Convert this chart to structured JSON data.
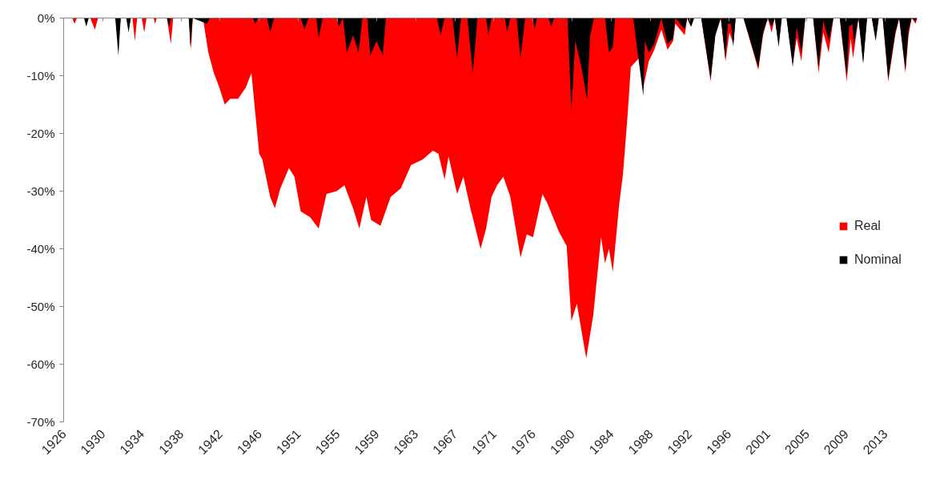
{
  "chart_data": {
    "type": "area",
    "xlim": [
      "1926-01",
      "2016-12"
    ],
    "xticks": [
      {
        "value": "1926-01",
        "label": "1926"
      },
      {
        "value": "1930-03",
        "label": "1930"
      },
      {
        "value": "1934-05",
        "label": "1934"
      },
      {
        "value": "1938-07",
        "label": "1938"
      },
      {
        "value": "1942-09",
        "label": "1942"
      },
      {
        "value": "1946-11",
        "label": "1946"
      },
      {
        "value": "1951-01",
        "label": "1951"
      },
      {
        "value": "1955-03",
        "label": "1955"
      },
      {
        "value": "1959-05",
        "label": "1959"
      },
      {
        "value": "1963-07",
        "label": "1963"
      },
      {
        "value": "1967-09",
        "label": "1967"
      },
      {
        "value": "1971-11",
        "label": "1971"
      },
      {
        "value": "1976-01",
        "label": "1976"
      },
      {
        "value": "1980-03",
        "label": "1980"
      },
      {
        "value": "1984-05",
        "label": "1984"
      },
      {
        "value": "1988-07",
        "label": "1988"
      },
      {
        "value": "1992-09",
        "label": "1992"
      },
      {
        "value": "1996-11",
        "label": "1996"
      },
      {
        "value": "2001-01",
        "label": "2001"
      },
      {
        "value": "2005-03",
        "label": "2005"
      },
      {
        "value": "2009-05",
        "label": "2009"
      },
      {
        "value": "2013-07",
        "label": "2013"
      }
    ],
    "ylim": [
      -70,
      0
    ],
    "yticks": [
      {
        "value": -70,
        "label": "-70%"
      },
      {
        "value": -60,
        "label": "-60%"
      },
      {
        "value": -50,
        "label": "-50%"
      },
      {
        "value": -40,
        "label": "-40%"
      },
      {
        "value": -30,
        "label": "-30%"
      },
      {
        "value": -20,
        "label": "-20%"
      },
      {
        "value": -10,
        "label": "-10%"
      },
      {
        "value": 0,
        "label": "0%"
      }
    ],
    "legend": "right",
    "series": [
      {
        "name": "Real",
        "color": "#ff0000",
        "x": [
          "1926-01",
          "1926-12",
          "1927-03",
          "1927-06",
          "1928-11",
          "1929-05",
          "1929-09",
          "1931-07",
          "1931-11",
          "1932-02",
          "1933-05",
          "1933-08",
          "1933-11",
          "1934-05",
          "1934-08",
          "1934-11",
          "1935-08",
          "1935-10",
          "1935-12",
          "1937-01",
          "1937-06",
          "1937-09",
          "1939-05",
          "1939-08",
          "1939-10",
          "1940-11",
          "1941-06",
          "1942-01",
          "1942-08",
          "1943-03",
          "1943-10",
          "1944-08",
          "1945-06",
          "1946-01",
          "1946-06",
          "1946-11",
          "1947-03",
          "1948-01",
          "1948-07",
          "1949-02",
          "1950-01",
          "1950-08",
          "1951-04",
          "1952-04",
          "1953-03",
          "1954-01",
          "1955-02",
          "1955-12",
          "1956-11",
          "1957-07",
          "1958-04",
          "1958-10",
          "1959-10",
          "1960-11",
          "1961-12",
          "1963-01",
          "1964-04",
          "1965-05",
          "1965-12",
          "1966-08",
          "1967-01",
          "1967-12",
          "1968-08",
          "1969-05",
          "1970-06",
          "1971-01",
          "1971-08",
          "1972-03",
          "1972-11",
          "1973-08",
          "1974-09",
          "1975-05",
          "1976-01",
          "1977-01",
          "1977-07",
          "1978-10",
          "1979-08",
          "1980-02",
          "1980-09",
          "1981-09",
          "1982-06",
          "1983-04",
          "1983-09",
          "1984-02",
          "1984-07",
          "1985-03",
          "1985-08",
          "1986-02",
          "1986-06",
          "1987-04",
          "1987-10",
          "1988-05",
          "1988-12",
          "1989-09",
          "1990-05",
          "1990-12",
          "1991-03",
          "1992-03",
          "1992-06",
          "1992-11",
          "1993-03",
          "1993-12",
          "1994-12",
          "1995-06",
          "1996-01",
          "1996-07",
          "1996-12",
          "1997-05",
          "1997-08",
          "1998-06",
          "2000-01",
          "2000-07",
          "2001-01",
          "2001-06",
          "2001-10",
          "2002-03",
          "2002-07",
          "2003-01",
          "2003-09",
          "2004-02",
          "2004-08",
          "2005-01",
          "2005-11",
          "2006-06",
          "2006-12",
          "2007-07",
          "2008-01",
          "2008-09",
          "2009-06",
          "2009-11",
          "2010-02",
          "2010-09",
          "2011-03",
          "2011-08",
          "2012-02",
          "2012-07",
          "2012-11",
          "2013-04",
          "2013-11",
          "2014-08",
          "2015-01",
          "2015-09",
          "2016-01",
          "2016-05",
          "2016-10",
          "2016-12"
        ],
        "values": [
          0,
          0,
          -1,
          0,
          0,
          -2,
          0,
          0,
          -3,
          0,
          0,
          -4,
          0,
          0,
          -2.5,
          0,
          0,
          -1,
          0,
          0,
          -4.5,
          0,
          0,
          -5.5,
          0,
          0,
          -6,
          -9.5,
          -12,
          -15,
          -14,
          -14,
          -12,
          -9.5,
          -16.5,
          -23.5,
          -24.5,
          -31,
          -33,
          -29.5,
          -26,
          -27.5,
          -33.5,
          -34.5,
          -36.5,
          -30.5,
          -30,
          -29,
          -33,
          -36.5,
          -31,
          -35,
          -36,
          -31,
          -29.5,
          -25.5,
          -24.5,
          -23,
          -23.5,
          -28,
          -24,
          -30.5,
          -27.5,
          -33,
          -40,
          -36.5,
          -31,
          -29,
          -27.5,
          -31,
          -41.5,
          -37.5,
          -38,
          -30.5,
          -32,
          -37,
          -39.5,
          -52.5,
          -49.5,
          -59,
          -51.5,
          -38,
          -42.5,
          -40,
          -44,
          -32.5,
          -27,
          -16.5,
          -8.5,
          -7,
          -12,
          -7.5,
          -5.5,
          -2,
          -5.5,
          -4,
          -1,
          -3,
          0,
          -1.5,
          0,
          0,
          -11,
          -3,
          0,
          -7.5,
          -2.5,
          -4.5,
          0,
          0,
          -9,
          -3,
          0,
          -2.5,
          0,
          -4.5,
          0,
          0,
          -8,
          -3.5,
          -7.5,
          0,
          0,
          -9.5,
          -2.5,
          -6,
          0,
          0,
          -11,
          -3.5,
          -7,
          0,
          -7.5,
          0,
          0,
          -3.5,
          0,
          0,
          -11,
          -3,
          0,
          -9.5,
          -3,
          0,
          -1,
          0
        ]
      },
      {
        "name": "Nominal",
        "color": "#000000",
        "x": [
          "1926-01",
          "1928-03",
          "1928-06",
          "1928-09",
          "1931-07",
          "1931-11",
          "1932-02",
          "1932-09",
          "1932-12",
          "1933-03",
          "1937-01",
          "1937-04",
          "1937-06",
          "1939-05",
          "1939-07",
          "1939-10",
          "1941-04",
          "1941-08",
          "1946-03",
          "1946-06",
          "1946-10",
          "1947-09",
          "1948-01",
          "1948-06",
          "1951-04",
          "1951-09",
          "1952-02",
          "1952-12",
          "1953-03",
          "1953-08",
          "1955-02",
          "1955-05",
          "1955-10",
          "1956-03",
          "1956-11",
          "1957-06",
          "1957-11",
          "1958-05",
          "1958-09",
          "1959-05",
          "1960-01",
          "1960-05",
          "1965-10",
          "1966-03",
          "1966-08",
          "1967-06",
          "1967-12",
          "1968-05",
          "1969-01",
          "1969-08",
          "1970-02",
          "1971-01",
          "1971-04",
          "1971-08",
          "1973-01",
          "1973-04",
          "1973-08",
          "1974-04",
          "1974-09",
          "1975-03",
          "1976-01",
          "1976-03",
          "1976-06",
          "1977-09",
          "1977-12",
          "1978-04",
          "1979-09",
          "1980-02",
          "1980-07",
          "1981-02",
          "1981-10",
          "1982-02",
          "1982-07",
          "1983-09",
          "1984-02",
          "1984-07",
          "1984-10",
          "1986-09",
          "1987-10",
          "1987-12",
          "1988-05",
          "1988-12",
          "1989-09",
          "1990-05",
          "1990-12",
          "1991-03",
          "1992-03",
          "1992-06",
          "1992-11",
          "1993-03",
          "1993-12",
          "1994-12",
          "1995-06",
          "1996-01",
          "1996-07",
          "1996-10",
          "1997-02",
          "1997-05",
          "1997-08",
          "1998-06",
          "2000-01",
          "2000-07",
          "2001-01",
          "2001-06",
          "2001-10",
          "2002-03",
          "2002-07",
          "2003-01",
          "2003-09",
          "2004-02",
          "2004-08",
          "2005-01",
          "2005-11",
          "2006-06",
          "2006-12",
          "2007-07",
          "2008-01",
          "2008-09",
          "2009-06",
          "2009-09",
          "2010-01",
          "2010-03",
          "2010-09",
          "2011-03",
          "2011-08",
          "2012-02",
          "2012-07",
          "2012-11",
          "2013-04",
          "2013-11",
          "2014-08",
          "2015-01",
          "2015-09",
          "2016-01",
          "2016-05",
          "2016-10",
          "2016-12"
        ],
        "values": [
          0,
          0,
          -1.5,
          0,
          0,
          -6.5,
          0,
          0,
          -2.5,
          0,
          0,
          -1.5,
          0,
          0,
          -5,
          0,
          -1,
          0,
          0,
          -1,
          0,
          0,
          -2.5,
          0,
          0,
          -2,
          0,
          0,
          -3.5,
          0,
          0,
          -1.5,
          0,
          -6,
          -3,
          -6,
          0,
          0,
          -6.5,
          -4,
          -6.5,
          0,
          0,
          -3,
          0,
          0,
          -7,
          0,
          0,
          -9.5,
          0,
          0,
          -3,
          0,
          0,
          -2.5,
          0,
          0,
          -7,
          0,
          0,
          -2,
          0,
          0,
          -1.5,
          0,
          0,
          -16,
          -4,
          -8,
          -14,
          -3,
          0,
          0,
          -6,
          -5,
          0,
          0,
          -13.5,
          -4,
          -6,
          -4.5,
          0,
          -4.5,
          -3.5,
          0,
          -2,
          0,
          -1.5,
          0,
          0,
          -10.5,
          -3,
          0,
          -7,
          -1,
          -1,
          -5,
          0,
          0,
          -8.5,
          -2.5,
          0,
          -1.5,
          0,
          -5,
          0,
          0,
          -8.5,
          -1.5,
          -6,
          0,
          0,
          -8.5,
          -0.5,
          -4,
          0,
          0,
          -10,
          -1.5,
          -1,
          -4.5,
          0,
          -8,
          0,
          0,
          -4,
          0,
          0,
          -10.5,
          -2.5,
          0,
          -9,
          -2,
          0,
          -0.5,
          0
        ]
      }
    ]
  }
}
